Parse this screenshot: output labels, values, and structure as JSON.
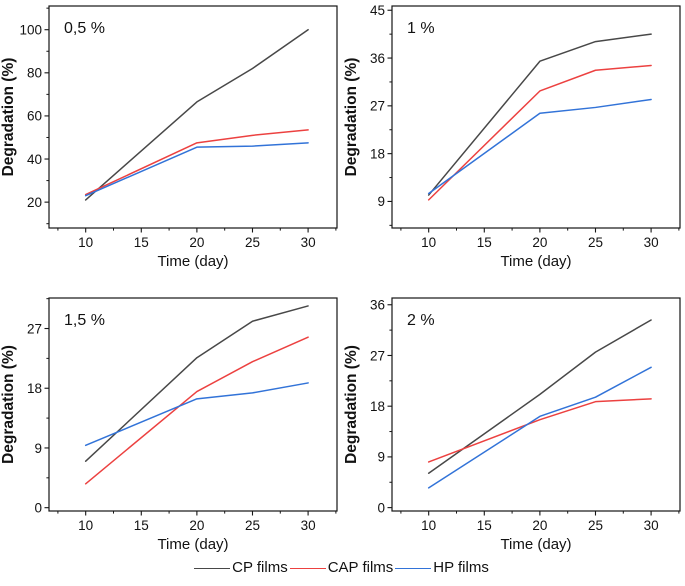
{
  "figure": {
    "xlabel": "Time (day)",
    "ylabel": "Degradation (%)",
    "legend": [
      {
        "label": "CP films",
        "color": "#484848"
      },
      {
        "label": "CAP films",
        "color": "#ec4140"
      },
      {
        "label": "HP films",
        "color": "#3273d8"
      }
    ]
  },
  "colors": {
    "cp": "#484848",
    "cap": "#ec4140",
    "hp": "#3273d8",
    "axis": "#151515",
    "text": "#121212"
  },
  "chart_data": [
    {
      "type": "line",
      "title": "0,5 %",
      "xlabel": "Time (day)",
      "ylabel": "Degradation (%)",
      "x": [
        10,
        20,
        25,
        30
      ],
      "series": [
        {
          "name": "CP films",
          "color": "#484848",
          "values": [
            21,
            66.5,
            82,
            100
          ]
        },
        {
          "name": "CAP films",
          "color": "#ec4140",
          "values": [
            23.5,
            47.5,
            51,
            53.5
          ]
        },
        {
          "name": "HP films",
          "color": "#3273d8",
          "values": [
            23,
            45.5,
            46,
            47.5
          ]
        }
      ],
      "xlim": [
        6.7,
        32.6
      ],
      "ylim": [
        8,
        111
      ],
      "xticks": [
        10,
        15,
        20,
        25,
        30
      ],
      "yticks": [
        20,
        40,
        60,
        80,
        100
      ],
      "grid": false,
      "legend_position": "shared-bottom"
    },
    {
      "type": "line",
      "title": "1 %",
      "xlabel": "Time (day)",
      "ylabel": "Degradation (%)",
      "x": [
        10,
        20,
        25,
        30
      ],
      "series": [
        {
          "name": "CP films",
          "color": "#484848",
          "values": [
            10.2,
            35.4,
            39.1,
            40.5
          ]
        },
        {
          "name": "CAP films",
          "color": "#ec4140",
          "values": [
            9.3,
            29.8,
            33.7,
            34.6
          ]
        },
        {
          "name": "HP films",
          "color": "#3273d8",
          "values": [
            10.5,
            25.6,
            26.7,
            28.2
          ]
        }
      ],
      "xlim": [
        6.7,
        32.6
      ],
      "ylim": [
        4,
        45.8
      ],
      "xticks": [
        10,
        15,
        20,
        25,
        30
      ],
      "yticks": [
        9,
        18,
        27,
        36,
        45
      ],
      "grid": false,
      "legend_position": "shared-bottom"
    },
    {
      "type": "line",
      "title": "1,5 %",
      "xlabel": "Time (day)",
      "ylabel": "Degradation (%)",
      "x": [
        10,
        20,
        25,
        30
      ],
      "series": [
        {
          "name": "CP films",
          "color": "#484848",
          "values": [
            7,
            22.6,
            28.1,
            30.4
          ]
        },
        {
          "name": "CAP films",
          "color": "#ec4140",
          "values": [
            3.6,
            17.5,
            22,
            25.7
          ]
        },
        {
          "name": "HP films",
          "color": "#3273d8",
          "values": [
            9.4,
            16.4,
            17.3,
            18.8
          ]
        }
      ],
      "xlim": [
        6.7,
        32.6
      ],
      "ylim": [
        -0.5,
        31.6
      ],
      "xticks": [
        10,
        15,
        20,
        25,
        30
      ],
      "yticks": [
        0,
        9,
        18,
        27
      ],
      "grid": false,
      "legend_position": "shared-bottom"
    },
    {
      "type": "line",
      "title": "2 %",
      "xlabel": "Time (day)",
      "ylabel": "Degradation (%)",
      "x": [
        10,
        20,
        25,
        30
      ],
      "series": [
        {
          "name": "CP films",
          "color": "#484848",
          "values": [
            6.1,
            20.1,
            27.6,
            33.3
          ]
        },
        {
          "name": "CAP films",
          "color": "#ec4140",
          "values": [
            8.1,
            15.6,
            18.8,
            19.3
          ]
        },
        {
          "name": "HP films",
          "color": "#3273d8",
          "values": [
            3.5,
            16.2,
            19.6,
            24.9
          ]
        }
      ],
      "xlim": [
        6.7,
        32.6
      ],
      "ylim": [
        -0.6,
        37.2
      ],
      "xticks": [
        10,
        15,
        20,
        25,
        30
      ],
      "yticks": [
        0,
        9,
        18,
        27,
        36
      ],
      "grid": false,
      "legend_position": "shared-bottom"
    }
  ]
}
